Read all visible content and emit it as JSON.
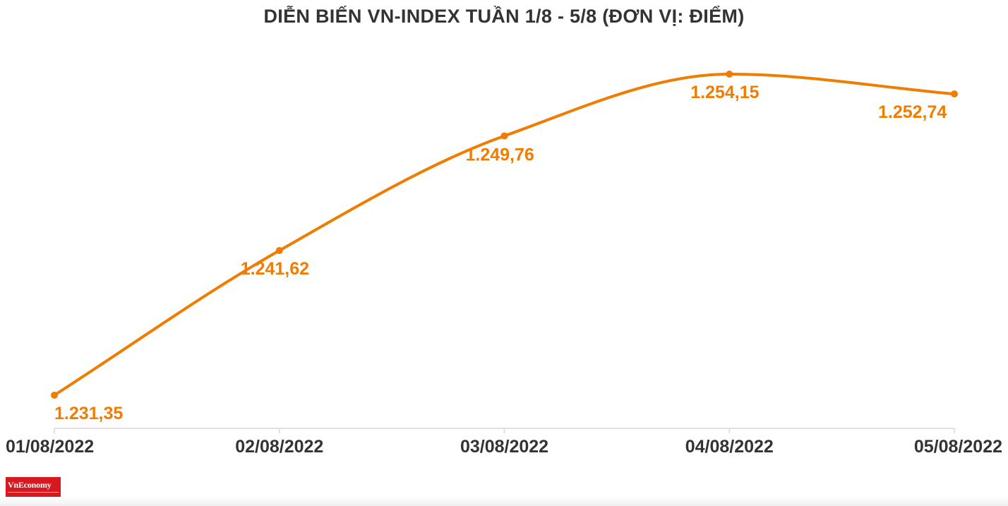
{
  "chart_data": {
    "type": "line",
    "title": "DIỄN BIẾN VN-INDEX TUẦN 1/8 - 5/8 (ĐƠN VỊ: ĐIỂM)",
    "categories": [
      "01/08/2022",
      "02/08/2022",
      "03/08/2022",
      "04/08/2022",
      "05/08/2022"
    ],
    "values": [
      1231.35,
      1241.62,
      1249.76,
      1254.15,
      1252.74
    ],
    "data_labels": [
      "1.231,35",
      "1.241,62",
      "1.249,76",
      "1.254,15",
      "1.252,74"
    ],
    "xlabel": "",
    "ylabel": "",
    "ylim": [
      1231.35,
      1254.15
    ],
    "grid": false,
    "legend": "none",
    "line_smooth": true
  },
  "colors": {
    "series": "#f07c00",
    "axis": "#e0e0e0",
    "text": "#333333",
    "logo_bg": "#d7191f"
  },
  "logo": {
    "text": "VnEconomy"
  }
}
